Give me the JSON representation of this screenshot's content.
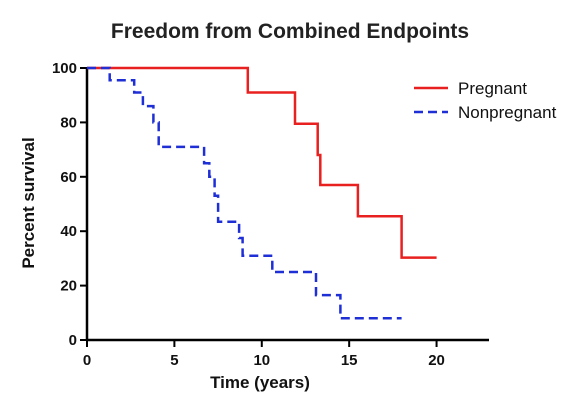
{
  "chart_data": {
    "type": "line",
    "title": "Freedom from Combined Endpoints",
    "xlabel": "Time (years)",
    "ylabel": "Percent survival",
    "xlim": [
      0,
      23
    ],
    "ylim": [
      0,
      100
    ],
    "x_ticks": [
      0,
      5,
      10,
      15,
      20
    ],
    "y_ticks": [
      0,
      20,
      40,
      60,
      80,
      100
    ],
    "grid": false,
    "legend_position": "top-right",
    "step": true,
    "series": [
      {
        "name": "Pregnant",
        "color": "#e8201f",
        "dash": "solid",
        "points": [
          [
            0,
            100
          ],
          [
            9.2,
            100
          ],
          [
            9.2,
            91
          ],
          [
            11.9,
            91
          ],
          [
            11.9,
            79.5
          ],
          [
            13.2,
            79.5
          ],
          [
            13.2,
            68
          ],
          [
            13.35,
            68
          ],
          [
            13.35,
            57
          ],
          [
            15.5,
            57
          ],
          [
            15.5,
            45.5
          ],
          [
            18,
            45.5
          ],
          [
            18,
            30.3
          ],
          [
            20,
            30.3
          ]
        ]
      },
      {
        "name": "Nonpregnant",
        "color": "#1f2fd6",
        "dash": "dashed",
        "points": [
          [
            0,
            100
          ],
          [
            1.3,
            100
          ],
          [
            1.3,
            95.5
          ],
          [
            2.7,
            95.5
          ],
          [
            2.7,
            91
          ],
          [
            3.2,
            91
          ],
          [
            3.2,
            86
          ],
          [
            3.8,
            86
          ],
          [
            3.8,
            80
          ],
          [
            4.1,
            80
          ],
          [
            4.1,
            71
          ],
          [
            6.7,
            71
          ],
          [
            6.7,
            65
          ],
          [
            7.0,
            65
          ],
          [
            7.0,
            60
          ],
          [
            7.3,
            60
          ],
          [
            7.3,
            53
          ],
          [
            7.5,
            53
          ],
          [
            7.5,
            43.5
          ],
          [
            8.7,
            43.5
          ],
          [
            8.7,
            37.5
          ],
          [
            8.9,
            37.5
          ],
          [
            8.9,
            31
          ],
          [
            10.6,
            31
          ],
          [
            10.6,
            25
          ],
          [
            13.1,
            25
          ],
          [
            13.1,
            16.5
          ],
          [
            14.5,
            16.5
          ],
          [
            14.5,
            8
          ],
          [
            16.5,
            8
          ],
          [
            16.5,
            8
          ],
          [
            18,
            8
          ]
        ]
      }
    ]
  }
}
